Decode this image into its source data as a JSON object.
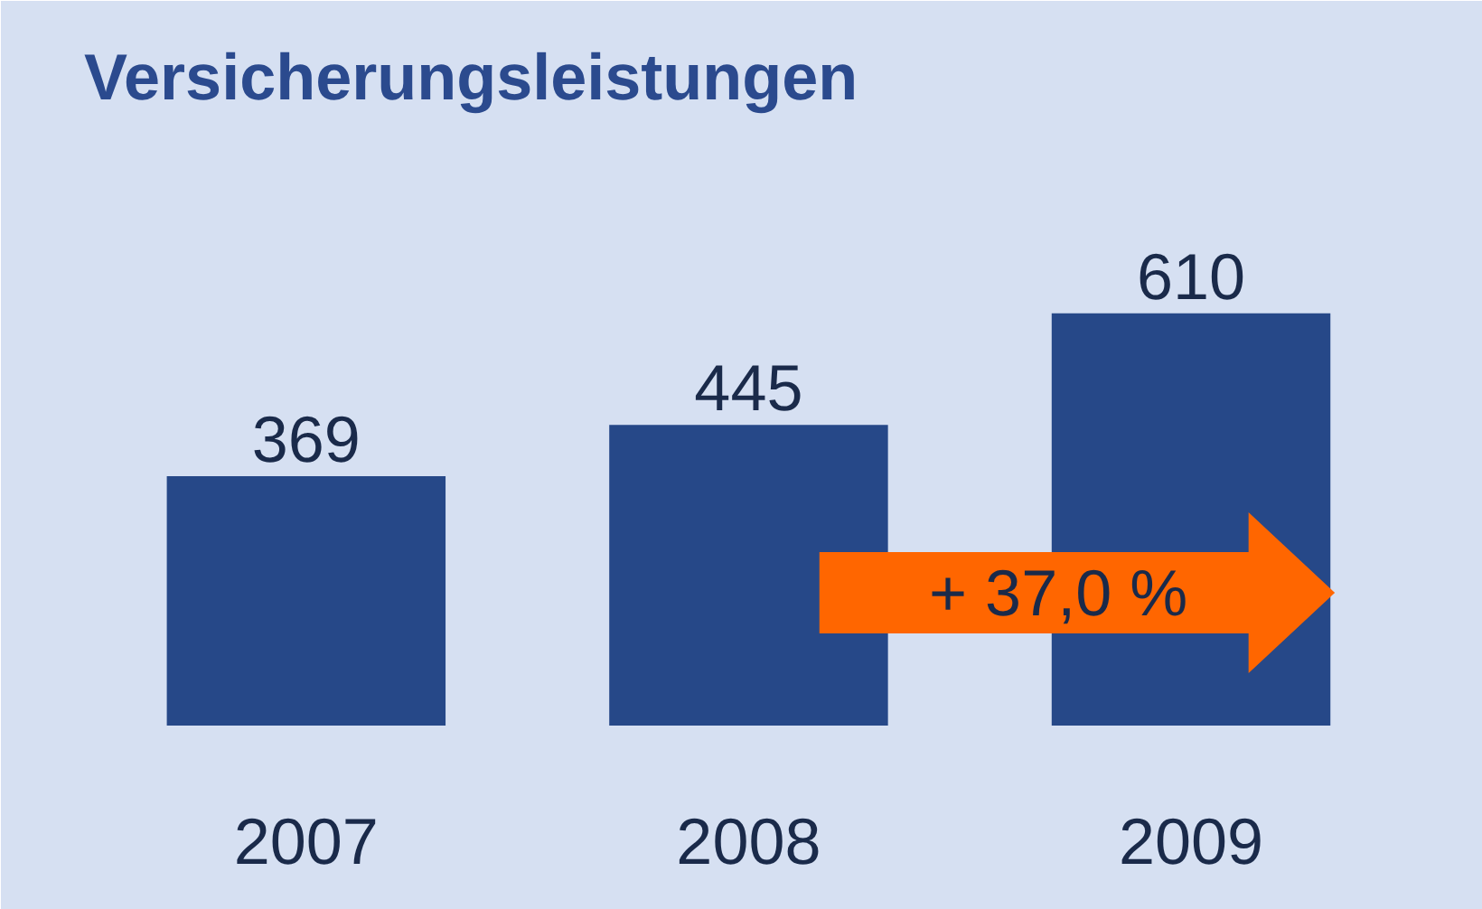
{
  "chart_data": {
    "type": "bar",
    "title": "Versicherungsleistungen",
    "categories": [
      "2007",
      "2008",
      "2009"
    ],
    "values": [
      369,
      445,
      610
    ],
    "color": "#264888",
    "data_labels": true,
    "annotations": [
      "+ 37,0 %"
    ]
  }
}
